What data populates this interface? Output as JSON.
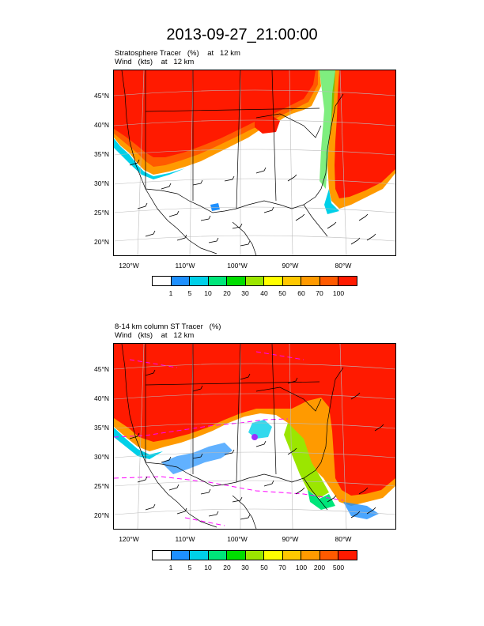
{
  "title": "2013-09-27_21:00:00",
  "panel1": {
    "line1": "Stratosphere Tracer   (%)    at   12 km",
    "line2": "Wind   (kts)    at   12 km",
    "colorbar_labels": [
      "1",
      "5",
      "10",
      "20",
      "30",
      "40",
      "50",
      "60",
      "70",
      "100"
    ]
  },
  "panel2": {
    "line1": "8-14 km column ST Tracer   (%)",
    "line2": "Wind   (kts)    at   12 km",
    "colorbar_labels": [
      "1",
      "5",
      "10",
      "20",
      "30",
      "50",
      "70",
      "100",
      "200",
      "500"
    ]
  },
  "lat_labels": [
    "45°N",
    "40°N",
    "35°N",
    "30°N",
    "25°N",
    "20°N"
  ],
  "lon_labels": [
    "120°W",
    "110°W",
    "100°W",
    "90°W",
    "80°W"
  ],
  "colors": [
    "#ffffff",
    "#1e90ff",
    "#00d0e8",
    "#00e67a",
    "#00dd00",
    "#9be600",
    "#ffff00",
    "#ffc800",
    "#ff9a00",
    "#ff5a00",
    "#ff1a00"
  ]
}
